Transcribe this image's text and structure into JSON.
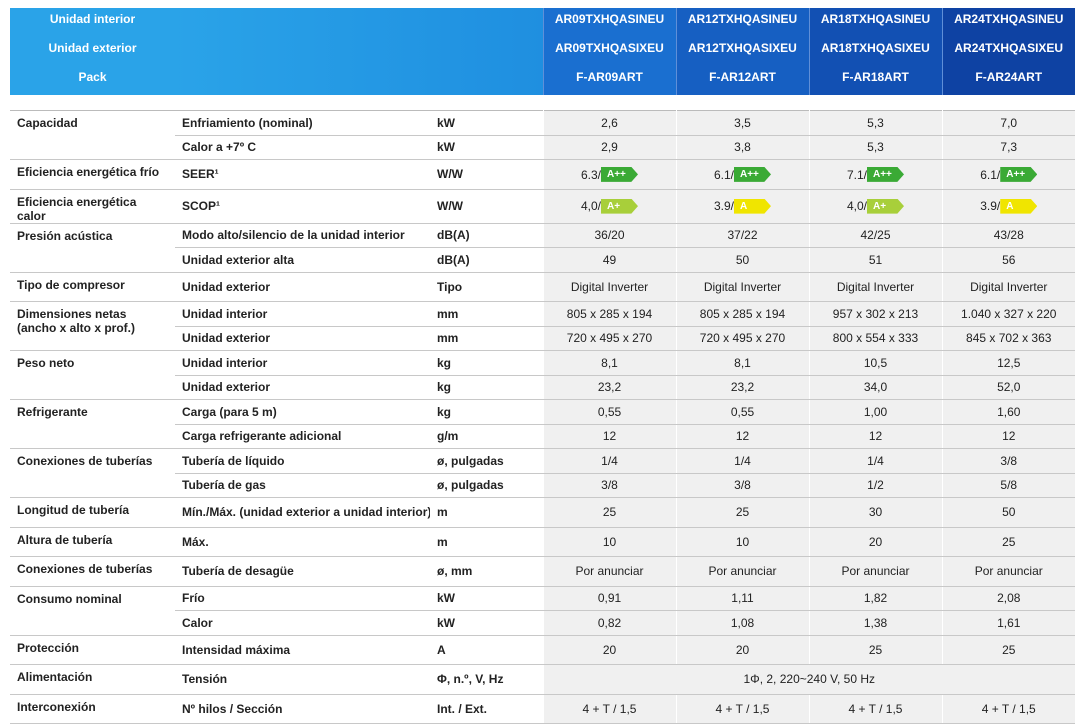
{
  "header": {
    "labels": [
      "Unidad interior",
      "Unidad exterior",
      "Pack"
    ],
    "models": [
      [
        "AR09TXHQASINEU",
        "AR09TXHQASIXEU",
        "F-AR09ART"
      ],
      [
        "AR12TXHQASINEU",
        "AR12TXHQASIXEU",
        "F-AR12ART"
      ],
      [
        "AR18TXHQASINEU",
        "AR18TXHQASIXEU",
        "F-AR18ART"
      ],
      [
        "AR24TXHQASINEU",
        "AR24TXHQASIXEU",
        "F-AR24ART"
      ]
    ]
  },
  "groups": [
    {
      "label": "Capacidad",
      "rows": [
        {
          "label": "Enfriamiento (nominal)",
          "unit": "kW",
          "values": [
            "2,6",
            "3,5",
            "5,3",
            "7,0"
          ]
        },
        {
          "label": "Calor a +7º C",
          "unit": "kW",
          "values": [
            "2,9",
            "3,8",
            "5,3",
            "7,3"
          ]
        }
      ]
    },
    {
      "label": "Eficiencia energética frío",
      "rows": [
        {
          "label": "SEER¹",
          "unit": "W/W",
          "values": [
            {
              "text": "6.3/",
              "rating": "A++",
              "color": "#3aaa35"
            },
            {
              "text": "6.1/",
              "rating": "A++",
              "color": "#3aaa35"
            },
            {
              "text": "7.1/",
              "rating": "A++",
              "color": "#3aaa35"
            },
            {
              "text": "6.1/",
              "rating": "A++",
              "color": "#3aaa35"
            }
          ]
        }
      ]
    },
    {
      "label": "Eficiencia energética calor",
      "rows": [
        {
          "label": "SCOP¹",
          "unit": "W/W",
          "values": [
            {
              "text": "4,0/",
              "rating": "A+",
              "color": "#a8cf3a"
            },
            {
              "text": "3.9/",
              "rating": "A",
              "color": "#f0e500"
            },
            {
              "text": "4,0/",
              "rating": "A+",
              "color": "#a8cf3a"
            },
            {
              "text": "3.9/",
              "rating": "A",
              "color": "#f0e500"
            }
          ]
        }
      ]
    },
    {
      "label": "Presión acústica",
      "rows": [
        {
          "label": "Modo alto/silencio de la unidad interior",
          "unit": "dB(A)",
          "values": [
            "36/20",
            "37/22",
            "42/25",
            "43/28"
          ]
        },
        {
          "label": "Unidad exterior alta",
          "unit": "dB(A)",
          "values": [
            "49",
            "50",
            "51",
            "56"
          ]
        }
      ]
    },
    {
      "label": "Tipo de compresor",
      "rows": [
        {
          "label": "Unidad exterior",
          "unit": "Tipo",
          "values": [
            "Digital Inverter",
            "Digital Inverter",
            "Digital Inverter",
            "Digital Inverter"
          ]
        }
      ]
    },
    {
      "label": "Dimensiones netas (ancho x alto x prof.)",
      "rows": [
        {
          "label": "Unidad interior",
          "unit": "mm",
          "values": [
            "805 x 285 x 194",
            "805 x 285 x 194",
            "957 x 302 x 213",
            "1.040 x 327 x 220"
          ]
        },
        {
          "label": "Unidad exterior",
          "unit": "mm",
          "values": [
            "720 x 495 x 270",
            "720 x 495 x 270",
            "800 x 554 x 333",
            "845 x 702 x 363"
          ]
        }
      ]
    },
    {
      "label": "Peso neto",
      "rows": [
        {
          "label": "Unidad interior",
          "unit": "kg",
          "values": [
            "8,1",
            "8,1",
            "10,5",
            "12,5"
          ]
        },
        {
          "label": "Unidad exterior",
          "unit": "kg",
          "values": [
            "23,2",
            "23,2",
            "34,0",
            "52,0"
          ]
        }
      ]
    },
    {
      "label": "Refrigerante",
      "rows": [
        {
          "label": "Carga (para 5 m)",
          "unit": "kg",
          "values": [
            "0,55",
            "0,55",
            "1,00",
            "1,60"
          ]
        },
        {
          "label": "Carga refrigerante adicional",
          "unit": "g/m",
          "values": [
            "12",
            "12",
            "12",
            "12"
          ]
        }
      ]
    },
    {
      "label": "Conexiones de tuberías",
      "rows": [
        {
          "label": "Tubería de líquido",
          "unit": "ø, pulgadas",
          "values": [
            "1/4",
            "1/4",
            "1/4",
            "3/8"
          ]
        },
        {
          "label": "Tubería de gas",
          "unit": "ø, pulgadas",
          "values": [
            "3/8",
            "3/8",
            "1/2",
            "5/8"
          ]
        }
      ]
    },
    {
      "label": "Longitud de tubería",
      "rows": [
        {
          "label": "Mín./Máx. (unidad exterior a unidad interior)",
          "unit": "m",
          "values": [
            "25",
            "25",
            "30",
            "50"
          ]
        }
      ]
    },
    {
      "label": "Altura de tubería",
      "rows": [
        {
          "label": "Máx.",
          "unit": "m",
          "values": [
            "10",
            "10",
            "20",
            "25"
          ]
        }
      ]
    },
    {
      "label": "Conexiones de tuberías",
      "rows": [
        {
          "label": "Tubería de desagüe",
          "unit": "ø, mm",
          "values": [
            "Por anunciar",
            "Por anunciar",
            "Por anunciar",
            "Por anunciar"
          ]
        }
      ]
    },
    {
      "label": "Consumo nominal",
      "rows": [
        {
          "label": "Frío",
          "unit": "kW",
          "values": [
            "0,91",
            "1,11",
            "1,82",
            "2,08"
          ]
        },
        {
          "label": "Calor",
          "unit": "kW",
          "values": [
            "0,82",
            "1,08",
            "1,38",
            "1,61"
          ]
        }
      ]
    },
    {
      "label": "Protección",
      "rows": [
        {
          "label": "Intensidad máxima",
          "unit": "A",
          "values": [
            "20",
            "20",
            "25",
            "25"
          ]
        }
      ]
    },
    {
      "label": "Alimentación",
      "rows": [
        {
          "label": "Tensión",
          "unit": "Φ, n.º, V, Hz",
          "values": [
            "1Φ, 2, 220~240 V, 50 Hz"
          ]
        }
      ]
    },
    {
      "label": "Interconexión",
      "rows": [
        {
          "label": "Nº hilos / Sección",
          "unit": "Int. / Ext.",
          "values": [
            "4 + T / 1,5",
            "4 + T / 1,5",
            "4 + T / 1,5",
            "4 + T / 1,5"
          ]
        }
      ]
    }
  ]
}
